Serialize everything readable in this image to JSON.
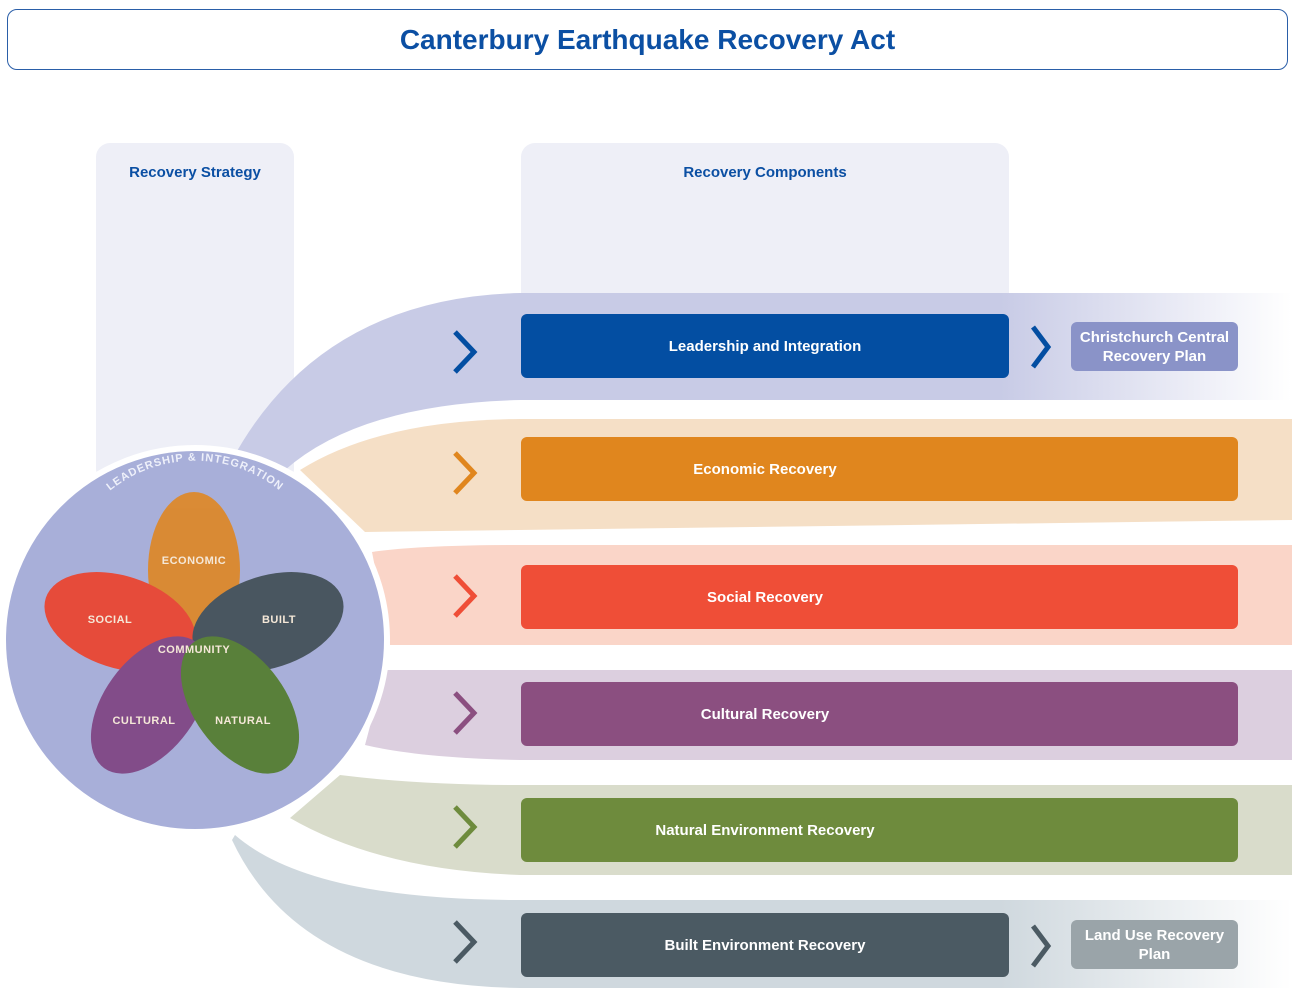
{
  "header": {
    "title": "Canterbury Earthquake Recovery Act"
  },
  "columns": {
    "strategy": "Recovery Strategy",
    "components": "Recovery Components"
  },
  "components": [
    {
      "label": "Leadership and Integration"
    },
    {
      "label": "Economic Recovery"
    },
    {
      "label": "Social Recovery"
    },
    {
      "label": "Cultural Recovery"
    },
    {
      "label": "Natural Environment Recovery"
    },
    {
      "label": "Built Environment Recovery"
    }
  ],
  "plans": [
    {
      "label": "Christchurch Central Recovery Plan"
    },
    {
      "label": "Land Use Recovery Plan"
    }
  ],
  "strategy_diagram": {
    "ring_label": "LEADERSHIP & INTEGRATION",
    "center_label": "COMMUNITY",
    "petals": [
      "ECONOMIC",
      "SOCIAL",
      "BUILT",
      "CULTURAL",
      "NATURAL"
    ]
  }
}
